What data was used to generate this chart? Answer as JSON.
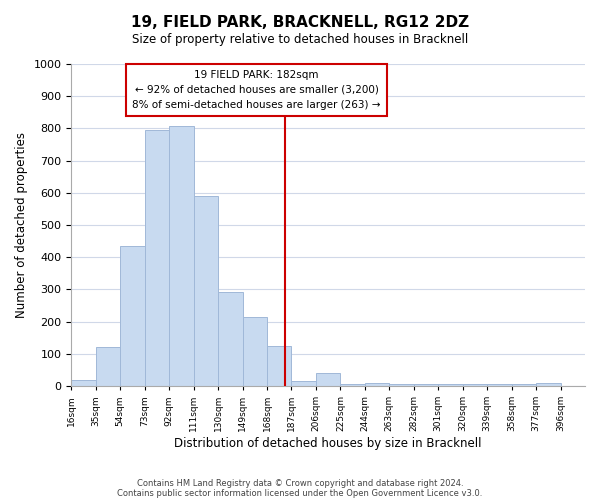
{
  "title": "19, FIELD PARK, BRACKNELL, RG12 2DZ",
  "subtitle": "Size of property relative to detached houses in Bracknell",
  "xlabel": "Distribution of detached houses by size in Bracknell",
  "ylabel": "Number of detached properties",
  "bar_left_edges": [
    16,
    35,
    54,
    73,
    92,
    111,
    130,
    149,
    168,
    187,
    206,
    225,
    244,
    263,
    282,
    301,
    320,
    339,
    358,
    377
  ],
  "bar_heights": [
    18,
    120,
    435,
    795,
    808,
    590,
    293,
    215,
    125,
    15,
    42,
    5,
    10,
    5,
    5,
    5,
    5,
    5,
    5,
    8
  ],
  "bin_width": 19,
  "bar_color": "#c8daf0",
  "bar_edge_color": "#a0b8d8",
  "vline_x": 182,
  "vline_color": "#cc0000",
  "annotation_title": "19 FIELD PARK: 182sqm",
  "annotation_line1": "← 92% of detached houses are smaller (3,200)",
  "annotation_line2": "8% of semi-detached houses are larger (263) →",
  "annotation_box_color": "#ffffff",
  "annotation_box_edge": "#cc0000",
  "tick_labels": [
    "16sqm",
    "35sqm",
    "54sqm",
    "73sqm",
    "92sqm",
    "111sqm",
    "130sqm",
    "149sqm",
    "168sqm",
    "187sqm",
    "206sqm",
    "225sqm",
    "244sqm",
    "263sqm",
    "282sqm",
    "301sqm",
    "320sqm",
    "339sqm",
    "358sqm",
    "377sqm",
    "396sqm"
  ],
  "tick_positions": [
    16,
    35,
    54,
    73,
    92,
    111,
    130,
    149,
    168,
    187,
    206,
    225,
    244,
    263,
    282,
    301,
    320,
    339,
    358,
    377,
    396
  ],
  "ylim": [
    0,
    1000
  ],
  "yticks": [
    0,
    100,
    200,
    300,
    400,
    500,
    600,
    700,
    800,
    900,
    1000
  ],
  "footer1": "Contains HM Land Registry data © Crown copyright and database right 2024.",
  "footer2": "Contains public sector information licensed under the Open Government Licence v3.0.",
  "bg_color": "#ffffff",
  "grid_color": "#d0d8e8"
}
